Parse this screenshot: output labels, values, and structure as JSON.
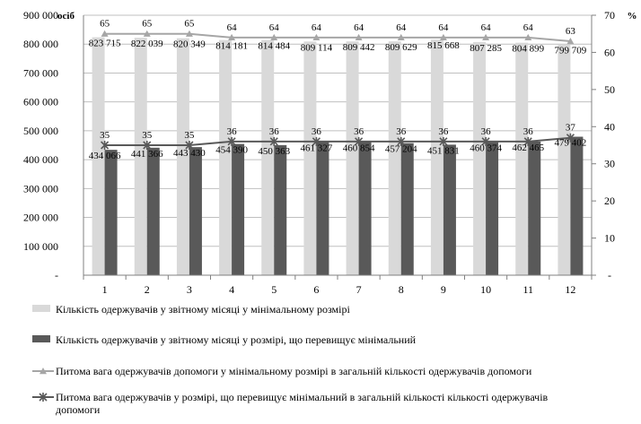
{
  "chart_data": {
    "type": "bar",
    "categories": [
      "1",
      "2",
      "3",
      "4",
      "5",
      "6",
      "7",
      "8",
      "9",
      "10",
      "11",
      "12"
    ],
    "y_left": {
      "unit": "осіб",
      "ylim": [
        0,
        900000
      ],
      "ticks": [
        "-",
        "100 000",
        "200 000",
        "300 000",
        "400 000",
        "500 000",
        "600 000",
        "700 000",
        "800 000",
        "900 000"
      ]
    },
    "y_right": {
      "unit": "%",
      "ylim": [
        0,
        70
      ],
      "ticks": [
        "-",
        "10",
        "20",
        "30",
        "40",
        "50",
        "60",
        "70"
      ]
    },
    "series": [
      {
        "name": "Кількість одержувачів у звітному місяці у мінімальному розмірі",
        "kind": "bar",
        "axis": "left",
        "color": "#d9d9d9",
        "values": [
          823715,
          822039,
          820349,
          814181,
          814484,
          809114,
          809442,
          809629,
          815668,
          807285,
          804899,
          799709
        ],
        "labels": [
          "823 715",
          "822 039",
          "820 349",
          "814 181",
          "814 484",
          "809 114",
          "809 442",
          "809 629",
          "815 668",
          "807 285",
          "804 899",
          "799 709"
        ]
      },
      {
        "name": "Кількість одержувачів у звітному місяці у розмірі, що перевищує мінімальний",
        "kind": "bar",
        "axis": "left",
        "color": "#595959",
        "values": [
          434066,
          441366,
          443430,
          454390,
          450363,
          461327,
          460854,
          457204,
          451831,
          460374,
          462465,
          479402
        ],
        "labels": [
          "434 066",
          "441 366",
          "443 430",
          "454 390",
          "450 363",
          "461 327",
          "460 854",
          "457 204",
          "451 831",
          "460 374",
          "462 465",
          "479 402"
        ]
      },
      {
        "name": "Питома вага одержувачів допомоги у мінімальному розмірі в загальній кількості одержувачів допомоги",
        "kind": "line",
        "axis": "right",
        "color": "#a6a6a6",
        "marker": "triangle",
        "values": [
          65,
          65,
          65,
          64,
          64,
          64,
          64,
          64,
          64,
          64,
          64,
          63
        ],
        "labels": [
          "65",
          "65",
          "65",
          "64",
          "64",
          "64",
          "64",
          "64",
          "64",
          "64",
          "64",
          "63"
        ]
      },
      {
        "name": "Питома вага одержувачів у розмірі, що перевищує мінімальний в загальній кількості кількості одержувачів допомоги",
        "kind": "line",
        "axis": "right",
        "color": "#595959",
        "marker": "star",
        "values": [
          35,
          35,
          35,
          36,
          36,
          36,
          36,
          36,
          36,
          36,
          36,
          37
        ],
        "labels": [
          "35",
          "35",
          "35",
          "36",
          "36",
          "36",
          "36",
          "36",
          "36",
          "36",
          "36",
          "37"
        ]
      }
    ],
    "grid": true,
    "legend_position": "bottom"
  }
}
